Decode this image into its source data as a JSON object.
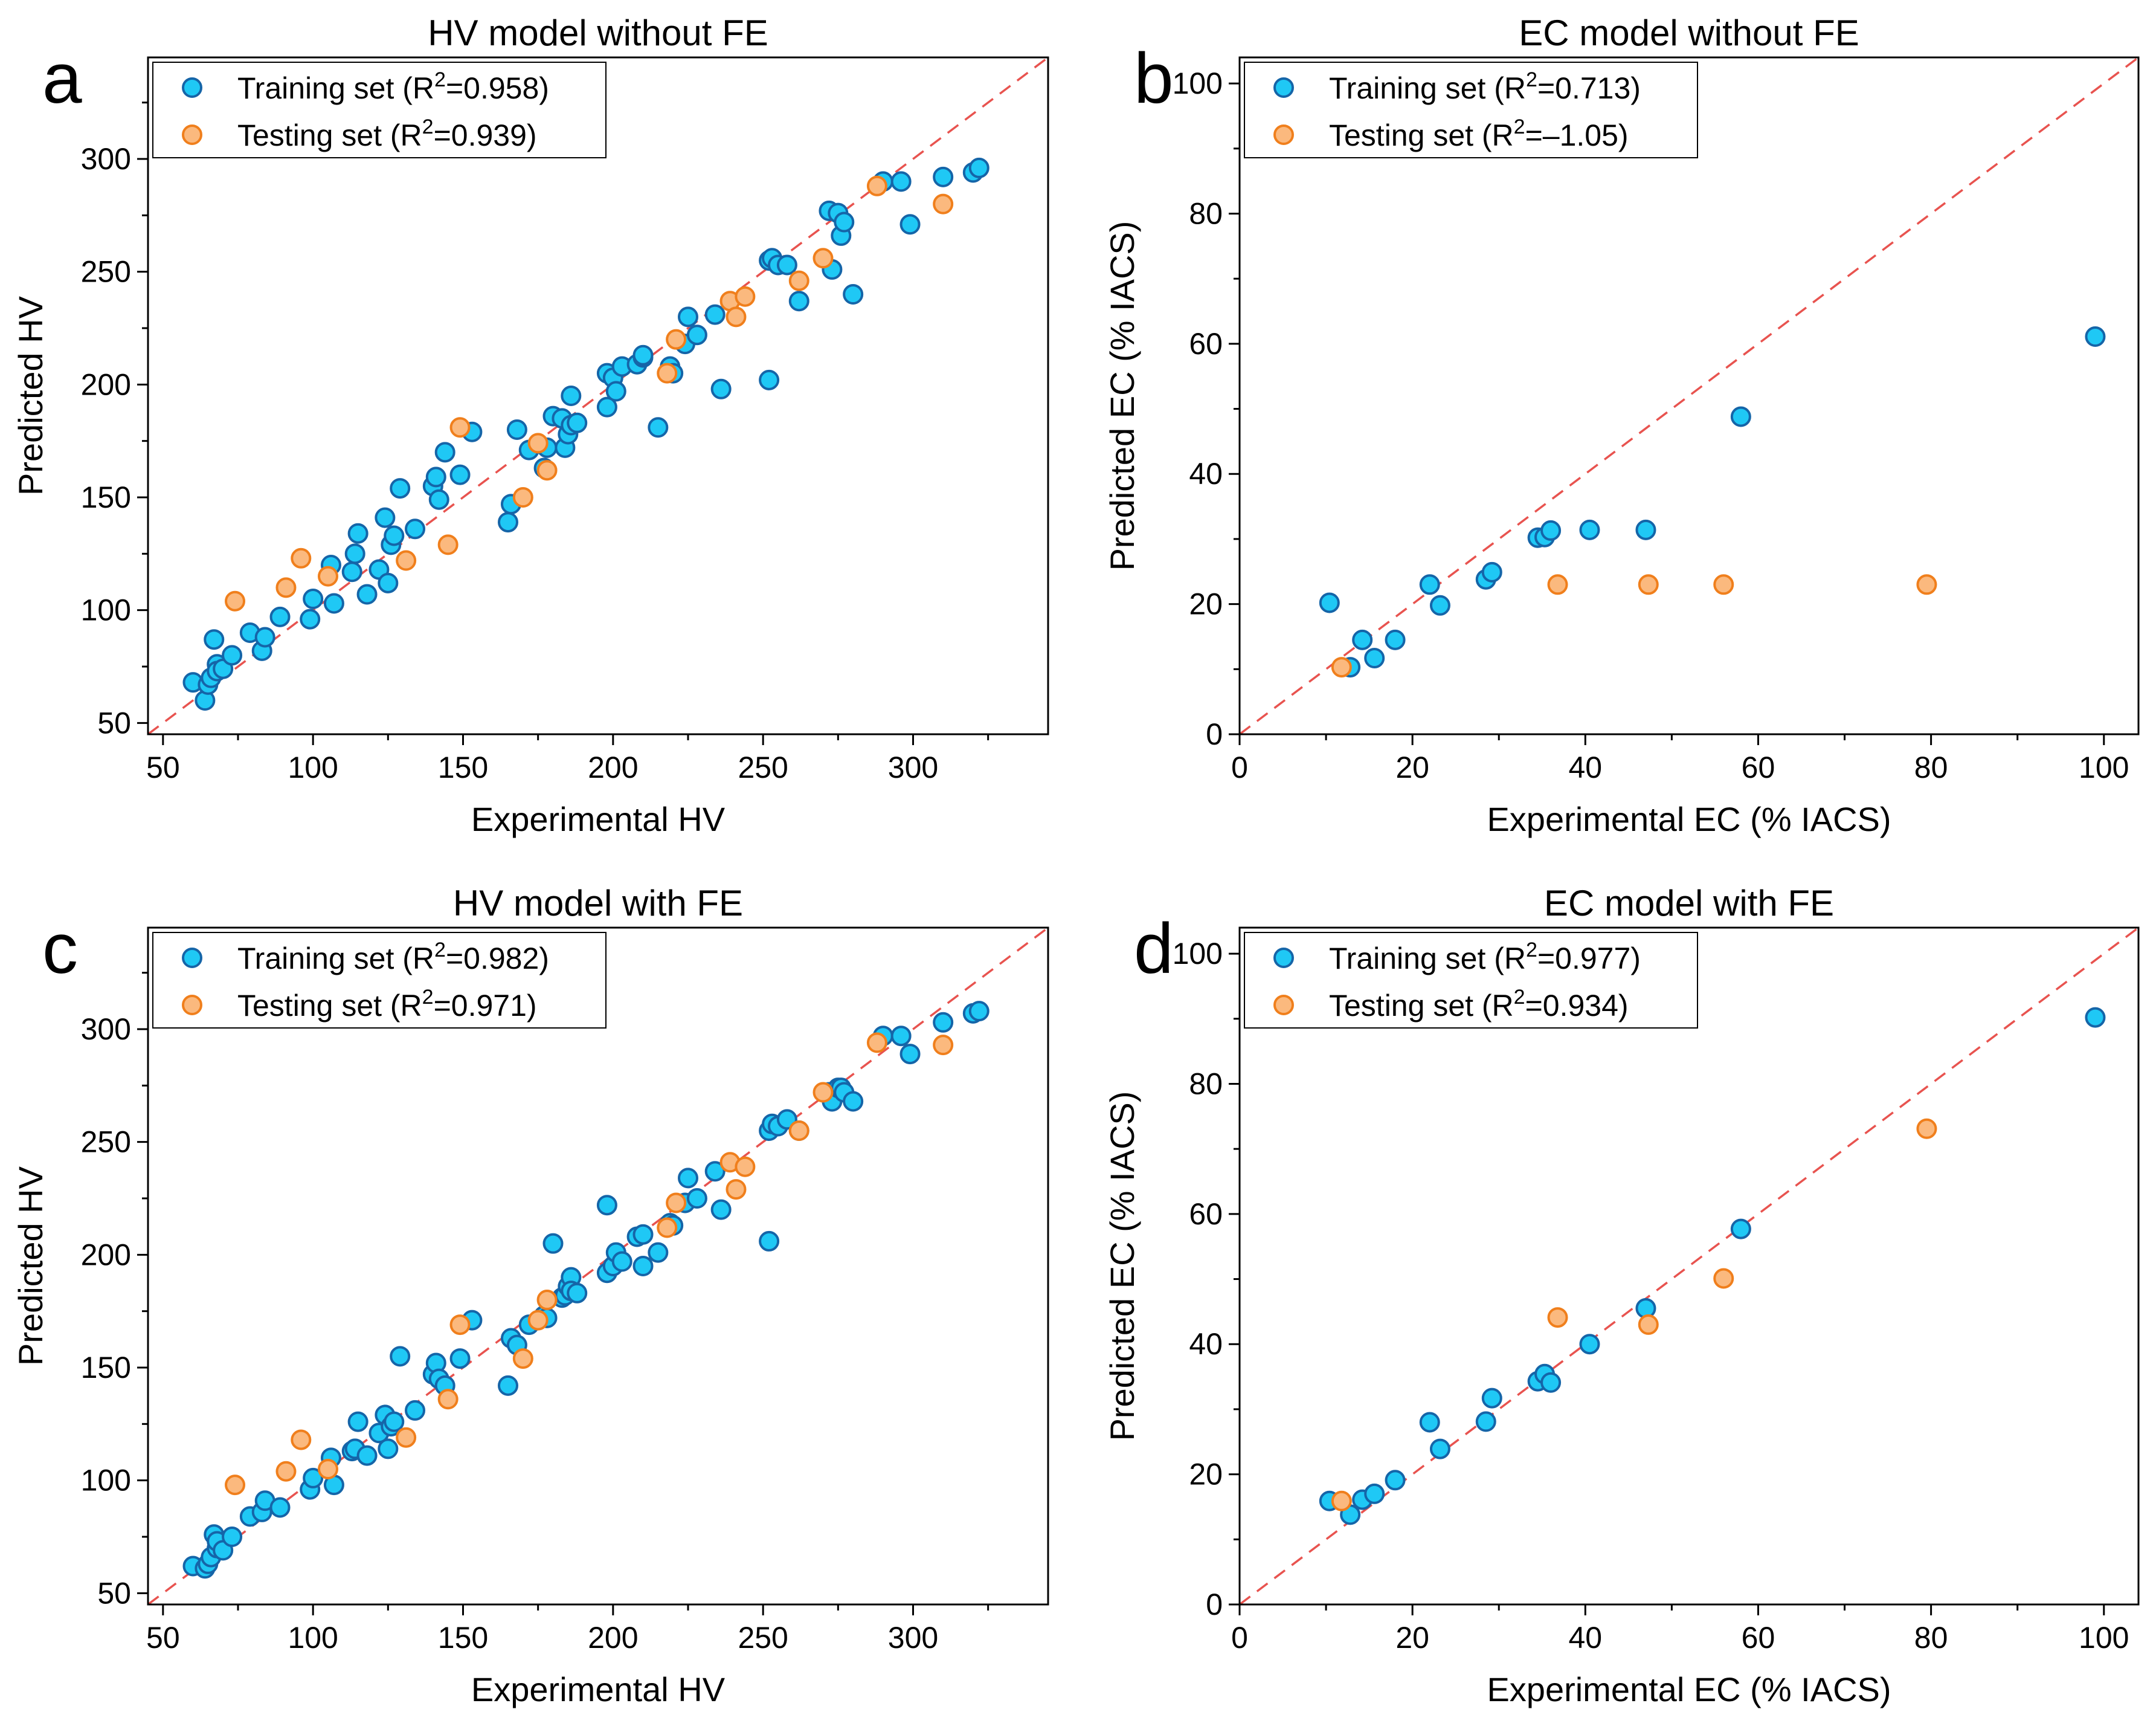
{
  "chart_data": [
    {
      "type": "scatter",
      "panel_label": "a",
      "title": "HV model without FE",
      "xlabel": "Experimental HV",
      "ylabel": "Predicted HV",
      "xlim": [
        45,
        345
      ],
      "ylim": [
        45,
        345
      ],
      "xticks": [
        50,
        100,
        150,
        200,
        250,
        300
      ],
      "yticks": [
        50,
        100,
        150,
        200,
        250,
        300
      ],
      "identity_line": true,
      "series": [
        {
          "name": "Training set",
          "legend_prefix": "Training set (R",
          "legend_sup": "2",
          "legend_suffix": "=0.958)",
          "color": "#1fc8f5",
          "edge": "#1565a8",
          "x": [
            60,
            64,
            65,
            66,
            67,
            68,
            68,
            70,
            73,
            79,
            83,
            84,
            89,
            99,
            100,
            106,
            107,
            113,
            114,
            115,
            118,
            122,
            124,
            125,
            126,
            127,
            129,
            134,
            140,
            141,
            142,
            144,
            149,
            153,
            165,
            166,
            168,
            172,
            177,
            178,
            180,
            183,
            184,
            185,
            186,
            186,
            188,
            198,
            198,
            200,
            201,
            203,
            208,
            210,
            210,
            215,
            219,
            220,
            224,
            225,
            228,
            234,
            236,
            252,
            252,
            253,
            255,
            258,
            262,
            272,
            273,
            275,
            276,
            277,
            280,
            290,
            296,
            299,
            310,
            320,
            322
          ],
          "y": [
            68,
            60,
            67,
            70,
            87,
            76,
            73,
            74,
            80,
            90,
            82,
            88,
            97,
            96,
            105,
            120,
            103,
            117,
            125,
            134,
            107,
            118,
            141,
            112,
            129,
            133,
            154,
            136,
            155,
            159,
            149,
            170,
            160,
            179,
            139,
            147,
            180,
            171,
            163,
            172,
            186,
            185,
            172,
            178,
            195,
            182,
            183,
            190,
            205,
            203,
            197,
            208,
            209,
            212,
            213,
            181,
            208,
            205,
            218,
            230,
            222,
            231,
            198,
            202,
            255,
            256,
            253,
            253,
            237,
            277,
            251,
            276,
            266,
            272,
            240,
            290,
            290,
            271,
            292,
            294,
            296
          ]
        },
        {
          "name": "Testing set",
          "legend_prefix": "Testing set (R",
          "legend_sup": "2",
          "legend_suffix": "=0.939)",
          "color": "#fbb97e",
          "edge": "#f07f1c",
          "x": [
            74,
            91,
            96,
            105,
            131,
            145,
            149,
            170,
            175,
            178,
            218,
            221,
            239,
            241,
            244,
            262,
            270,
            288,
            310
          ],
          "y": [
            104,
            110,
            123,
            115,
            122,
            129,
            181,
            150,
            174,
            162,
            205,
            220,
            237,
            230,
            239,
            246,
            256,
            288,
            280
          ]
        }
      ]
    },
    {
      "type": "scatter",
      "panel_label": "b",
      "title": "EC model without FE",
      "xlabel": "Experimental EC (% IACS)",
      "ylabel": "Predicted EC (% IACS)",
      "xlim": [
        0,
        104
      ],
      "ylim": [
        0,
        104
      ],
      "xticks": [
        0,
        20,
        40,
        60,
        80,
        100
      ],
      "yticks": [
        0,
        20,
        40,
        60,
        80,
        100
      ],
      "identity_line": true,
      "series": [
        {
          "name": "Training set",
          "legend_prefix": "Training set (R",
          "legend_sup": "2",
          "legend_suffix": "=0.713)",
          "color": "#1fc8f5",
          "edge": "#1565a8",
          "x": [
            10.4,
            12.8,
            14.2,
            15.6,
            18.0,
            22.0,
            23.2,
            28.5,
            29.2,
            34.5,
            35.3,
            36.0,
            40.5,
            47.0,
            58.0,
            99.0
          ],
          "y": [
            20.2,
            10.3,
            14.5,
            11.7,
            14.5,
            23.0,
            19.8,
            23.8,
            24.9,
            30.2,
            30.3,
            31.3,
            31.4,
            31.4,
            48.8,
            61.1
          ]
        },
        {
          "name": "Testing set",
          "legend_prefix": "Testing set (R",
          "legend_sup": "2",
          "legend_suffix": "=–1.05)",
          "color": "#fbb97e",
          "edge": "#f07f1c",
          "x": [
            11.8,
            36.8,
            47.3,
            56.0,
            79.5
          ],
          "y": [
            10.3,
            23.0,
            23.0,
            23.0,
            23.0
          ]
        }
      ]
    },
    {
      "type": "scatter",
      "panel_label": "c",
      "title": "HV model with FE",
      "xlabel": "Experimental HV",
      "ylabel": "Predicted HV",
      "xlim": [
        45,
        345
      ],
      "ylim": [
        45,
        345
      ],
      "xticks": [
        50,
        100,
        150,
        200,
        250,
        300
      ],
      "yticks": [
        50,
        100,
        150,
        200,
        250,
        300
      ],
      "identity_line": true,
      "series": [
        {
          "name": "Training set",
          "legend_prefix": "Training set (R",
          "legend_sup": "2",
          "legend_suffix": "=0.982)",
          "color": "#1fc8f5",
          "edge": "#1565a8",
          "x": [
            60,
            64,
            65,
            66,
            67,
            68,
            68,
            70,
            73,
            79,
            83,
            84,
            89,
            99,
            100,
            106,
            107,
            113,
            114,
            115,
            118,
            122,
            124,
            125,
            126,
            127,
            129,
            134,
            140,
            141,
            142,
            144,
            149,
            153,
            165,
            166,
            168,
            172,
            177,
            178,
            180,
            183,
            184,
            185,
            186,
            186,
            188,
            198,
            198,
            200,
            201,
            203,
            208,
            210,
            210,
            215,
            219,
            220,
            224,
            225,
            228,
            234,
            236,
            252,
            252,
            253,
            255,
            258,
            262,
            272,
            273,
            275,
            276,
            277,
            280,
            290,
            296,
            299,
            310,
            320,
            322
          ],
          "y": [
            62,
            61,
            63,
            66,
            76,
            70,
            73,
            69,
            75,
            84,
            86,
            91,
            88,
            96,
            101,
            110,
            98,
            113,
            114,
            126,
            111,
            121,
            129,
            114,
            124,
            126,
            155,
            131,
            147,
            152,
            145,
            142,
            154,
            171,
            142,
            163,
            160,
            169,
            173,
            172,
            205,
            181,
            182,
            186,
            190,
            184,
            183,
            192,
            222,
            195,
            201,
            197,
            208,
            195,
            209,
            201,
            214,
            213,
            223,
            234,
            225,
            237,
            220,
            206,
            255,
            258,
            257,
            260,
            255,
            272,
            268,
            274,
            274,
            272,
            268,
            297,
            297,
            289,
            303,
            307,
            308
          ]
        },
        {
          "name": "Testing set",
          "legend_prefix": "Testing set (R",
          "legend_sup": "2",
          "legend_suffix": "=0.971)",
          "color": "#fbb97e",
          "edge": "#f07f1c",
          "x": [
            74,
            91,
            96,
            105,
            131,
            145,
            149,
            170,
            175,
            178,
            218,
            221,
            239,
            241,
            244,
            262,
            270,
            288,
            310
          ],
          "y": [
            98,
            104,
            118,
            105,
            119,
            136,
            169,
            154,
            171,
            180,
            212,
            223,
            241,
            229,
            239,
            255,
            272,
            294,
            293
          ]
        }
      ]
    },
    {
      "type": "scatter",
      "panel_label": "d",
      "title": "EC model with FE",
      "xlabel": "Experimental EC (% IACS)",
      "ylabel": "Predicted EC (% IACS)",
      "xlim": [
        0,
        104
      ],
      "ylim": [
        0,
        104
      ],
      "xticks": [
        0,
        20,
        40,
        60,
        80,
        100
      ],
      "yticks": [
        0,
        20,
        40,
        60,
        80,
        100
      ],
      "identity_line": true,
      "series": [
        {
          "name": "Training set",
          "legend_prefix": "Training set (R",
          "legend_sup": "2",
          "legend_suffix": "=0.977)",
          "color": "#1fc8f5",
          "edge": "#1565a8",
          "x": [
            10.4,
            12.8,
            14.2,
            15.6,
            18.0,
            22.0,
            23.2,
            28.5,
            29.2,
            34.5,
            35.3,
            36.0,
            40.5,
            47.0,
            58.0,
            99.0
          ],
          "y": [
            15.9,
            13.8,
            16.1,
            17.0,
            19.1,
            28.0,
            23.9,
            28.1,
            31.7,
            34.3,
            35.4,
            34.1,
            40.0,
            45.5,
            57.7,
            90.2
          ]
        },
        {
          "name": "Testing set",
          "legend_prefix": "Testing set (R",
          "legend_sup": "2",
          "legend_suffix": "=0.934)",
          "color": "#fbb97e",
          "edge": "#f07f1c",
          "x": [
            11.8,
            36.8,
            47.3,
            56.0,
            79.5
          ],
          "y": [
            15.9,
            44.1,
            43.0,
            50.1,
            73.1
          ]
        }
      ]
    }
  ]
}
